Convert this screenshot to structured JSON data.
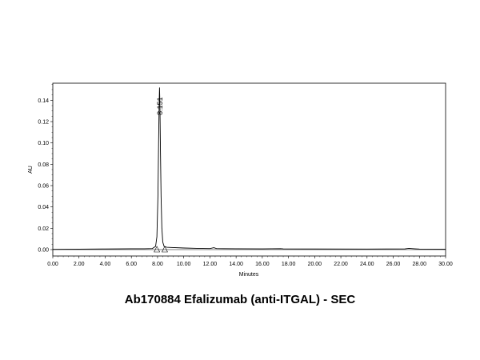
{
  "chart_data": {
    "type": "line",
    "title": "Ab170884 Efalizumab (anti-ITGAL) - SEC",
    "xlabel": "Minutes",
    "ylabel": "AU",
    "xlim": [
      0,
      30
    ],
    "ylim": [
      -0.006,
      0.156
    ],
    "x_ticks": [
      "0.00",
      "2.00",
      "4.00",
      "6.00",
      "8.00",
      "10.00",
      "12.00",
      "14.00",
      "16.00",
      "18.00",
      "20.00",
      "22.00",
      "24.00",
      "26.00",
      "28.00",
      "30.00"
    ],
    "y_ticks": [
      "0.00",
      "0.02",
      "0.04",
      "0.06",
      "0.08",
      "0.10",
      "0.12",
      "0.14"
    ],
    "grid": false,
    "series": [
      {
        "x": [
          0,
          2,
          4,
          6,
          7.0,
          7.6,
          7.85,
          7.95,
          8.03,
          8.08,
          8.12,
          8.151,
          8.18,
          8.22,
          8.27,
          8.33,
          8.4,
          8.5,
          8.7,
          9.0,
          10.0,
          11.0,
          12.0,
          12.3,
          12.5,
          13.0,
          14.0,
          16.0,
          17.4,
          17.6,
          20.0,
          24.0,
          26.9,
          27.2,
          27.6,
          28.0,
          30.0
        ],
        "y": [
          0.0002,
          0.0004,
          0.0006,
          0.0008,
          0.0008,
          0.001,
          0.003,
          0.012,
          0.05,
          0.1,
          0.135,
          0.152,
          0.137,
          0.095,
          0.05,
          0.02,
          0.007,
          0.003,
          0.0022,
          0.002,
          0.0015,
          0.0012,
          0.001,
          0.0018,
          0.001,
          0.0009,
          0.0008,
          0.0007,
          0.0009,
          0.0007,
          0.0006,
          0.0005,
          0.0007,
          0.0012,
          0.0008,
          0.0005,
          0.0004
        ]
      }
    ],
    "annotations": [
      {
        "text": "8.151",
        "x": 8.151,
        "y": 0.152
      }
    ],
    "peak_markers": [
      {
        "x": 7.95,
        "y": 0.0
      },
      {
        "x": 8.55,
        "y": 0.0
      }
    ],
    "line_color": "#000000"
  }
}
